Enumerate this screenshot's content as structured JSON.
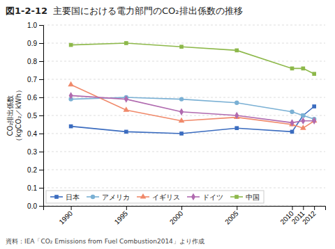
{
  "chart_data": {
    "type": "line",
    "title_prefix": "図1-2-12",
    "title": "主要国における電力部門のCO₂排出係数の推移",
    "y_label": "CO₂排出係数\n（kgCO₂／kWh）",
    "source": "資料：IEA「CO₂ Emissions from Fuel Combustion2014」より作成",
    "x": [
      1990,
      1995,
      2000,
      2005,
      2010,
      2011,
      2012
    ],
    "series": [
      {
        "name": "日本",
        "color": "#3b6cbf",
        "marker": "square",
        "values": [
          0.44,
          0.41,
          0.4,
          0.43,
          0.41,
          0.5,
          0.55
        ]
      },
      {
        "name": "アメリカ",
        "color": "#7ab0d4",
        "marker": "circle",
        "values": [
          0.59,
          0.6,
          0.59,
          0.57,
          0.52,
          0.5,
          0.48
        ]
      },
      {
        "name": "イギリス",
        "color": "#f0896a",
        "marker": "triangle",
        "values": [
          0.67,
          0.53,
          0.47,
          0.49,
          0.45,
          0.43,
          0.47
        ]
      },
      {
        "name": "ドイツ",
        "color": "#b06aaf",
        "marker": "diamond",
        "values": [
          0.61,
          0.59,
          0.52,
          0.5,
          0.46,
          0.47,
          0.47
        ]
      },
      {
        "name": "中国",
        "color": "#8db84a",
        "marker": "square",
        "values": [
          0.89,
          0.9,
          0.88,
          0.86,
          0.76,
          0.76,
          0.73
        ]
      }
    ],
    "xlim": [
      1987.5,
      2013
    ],
    "ylim": [
      0.0,
      1.0
    ],
    "xticks": [
      1990,
      1995,
      2000,
      2005,
      2010,
      2011,
      2012
    ],
    "yticks": [
      {
        "value": 0.0,
        "label": "0.0"
      },
      0.1,
      0.2,
      0.3,
      0.4,
      0.5,
      0.6,
      0.7,
      0.8,
      0.9,
      {
        "value": 1.0,
        "label": "1.0"
      }
    ],
    "grid": true,
    "legend": "bottom-left"
  }
}
